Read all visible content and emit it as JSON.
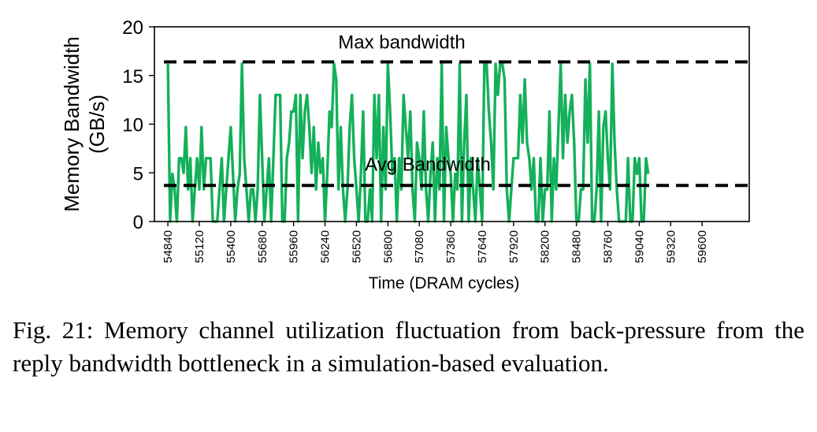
{
  "caption": "Fig. 21: Memory channel utilization fluctuation from back-pressure from the reply bandwidth bottleneck in a simulation-based evaluation.",
  "colors": {
    "series": "#14b05a",
    "reference_lines": "#000000"
  },
  "chart_data": {
    "type": "line",
    "xlabel": "Time (DRAM cycles)",
    "ylabel": "Memory Bandwidth (GB/s)",
    "ylabel_lines": [
      "Memory Bandwidth",
      "(GB/s)"
    ],
    "ylim": [
      0,
      20
    ],
    "yticks": [
      0,
      5,
      10,
      15,
      20
    ],
    "xlim": [
      54720,
      60020
    ],
    "xticks": [
      54840,
      55120,
      55400,
      55680,
      55960,
      56240,
      56520,
      56800,
      57080,
      57360,
      57640,
      57920,
      58200,
      58480,
      58760,
      59040,
      59320,
      59600
    ],
    "grid": false,
    "reference_lines": [
      {
        "label": "Max bandwidth",
        "y": 16.4
      },
      {
        "label": "Avg Bandwidth",
        "y": 3.7
      }
    ],
    "series": [
      {
        "x_start": 54840,
        "x_step": 20,
        "values": [
          16.2,
          0,
          4.9,
          3.3,
          0,
          6.5,
          6.5,
          5,
          9.7,
          3.3,
          6.5,
          0,
          3.3,
          6.5,
          3.3,
          9.7,
          3.3,
          6.5,
          6.5,
          6.5,
          0,
          0,
          0,
          3.3,
          6.5,
          0,
          3.3,
          6.5,
          9.7,
          4.9,
          0,
          3.3,
          4.9,
          16.2,
          6.5,
          3.3,
          0,
          3.3,
          3.3,
          0,
          3.3,
          13,
          6.5,
          0,
          3.3,
          6.5,
          0,
          6.5,
          13,
          13,
          13,
          0,
          0,
          6.5,
          8.1,
          11.3,
          11.3,
          13,
          0,
          13,
          6.5,
          11.3,
          13,
          9.7,
          5,
          9.7,
          3.3,
          8.1,
          5,
          6.5,
          0,
          4.9,
          11.3,
          9.7,
          16.2,
          14.6,
          3.3,
          9.7,
          3.3,
          0,
          3.3,
          9.7,
          13,
          6.5,
          3.3,
          0,
          4.9,
          11.3,
          0,
          0,
          3.3,
          0,
          13,
          6.5,
          13,
          0,
          9.7,
          3.3,
          16.2,
          11.3,
          4.9,
          6.5,
          0,
          6.5,
          3.3,
          13,
          9.7,
          6.5,
          11.3,
          3.3,
          0,
          8.1,
          6.5,
          3.3,
          11.3,
          3.3,
          0,
          4.9,
          8.1,
          0,
          6.5,
          3.3,
          16.2,
          0,
          9.7,
          6.5,
          4.9,
          0,
          4.9,
          3.3,
          16.2,
          0,
          8.1,
          13,
          0,
          6.5,
          3.3,
          0,
          6.5,
          3.3,
          0,
          16.2,
          16.2,
          11.3,
          8.1,
          3.3,
          16.2,
          13,
          16.2,
          16.2,
          14.6,
          3.3,
          0,
          3.3,
          6.5,
          6.5,
          6.5,
          13,
          8.1,
          14.6,
          8.1,
          6.5,
          3.3,
          6.5,
          0,
          0,
          6.5,
          0,
          3.3,
          3.3,
          11.3,
          0,
          6.5,
          3.3,
          9.7,
          16.2,
          6.5,
          13,
          8.1,
          11.3,
          13,
          8.1,
          0,
          0,
          3.3,
          3.3,
          14.6,
          8.1,
          16.2,
          0,
          0,
          3.3,
          11.3,
          0,
          9.7,
          11.3,
          6.5,
          3.3,
          16.2,
          8.1,
          3.3,
          0,
          0,
          0,
          0,
          6.5,
          0,
          0,
          6.5,
          4.9,
          6.5,
          0,
          0,
          6.5,
          4.9
        ]
      }
    ]
  }
}
